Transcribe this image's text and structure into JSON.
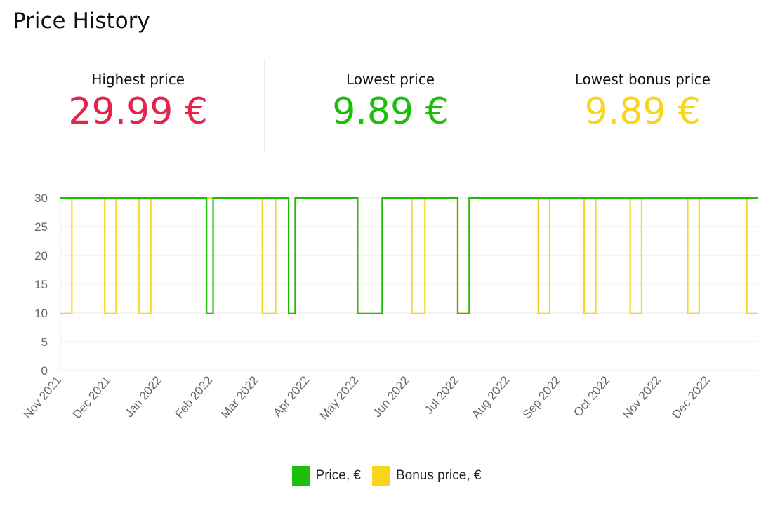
{
  "page": {
    "title": "Price History"
  },
  "stats": [
    {
      "label": "Highest price",
      "value": "29.99 €",
      "color": "#e3254b"
    },
    {
      "label": "Lowest price",
      "value": "9.89 €",
      "color": "#1dbd0c"
    },
    {
      "label": "Lowest bonus price",
      "value": "9.89 €",
      "color": "#f9d51c"
    }
  ],
  "chart_data": {
    "type": "line",
    "step": true,
    "x_type": "date",
    "xlim": [
      "2021-11-01",
      "2022-12-31"
    ],
    "ylim": [
      0,
      30
    ],
    "yticks": [
      0,
      5,
      10,
      15,
      20,
      25,
      30
    ],
    "xticks": [
      {
        "date": "2021-11-01",
        "label": "Nov 2021"
      },
      {
        "date": "2021-12-01",
        "label": "Dec 2021"
      },
      {
        "date": "2022-01-01",
        "label": "Jan 2022"
      },
      {
        "date": "2022-02-01",
        "label": "Feb 2022"
      },
      {
        "date": "2022-03-01",
        "label": "Mar 2022"
      },
      {
        "date": "2022-04-01",
        "label": "Apr 2022"
      },
      {
        "date": "2022-05-01",
        "label": "May 2022"
      },
      {
        "date": "2022-06-01",
        "label": "Jun 2022"
      },
      {
        "date": "2022-07-01",
        "label": "Jul 2022"
      },
      {
        "date": "2022-08-01",
        "label": "Aug 2022"
      },
      {
        "date": "2022-09-01",
        "label": "Sep 2022"
      },
      {
        "date": "2022-10-01",
        "label": "Oct 2022"
      },
      {
        "date": "2022-11-01",
        "label": "Nov 2022"
      },
      {
        "date": "2022-12-01",
        "label": "Dec 2022"
      }
    ],
    "grid": true,
    "legend_position": "bottom",
    "series": [
      {
        "name": "Price,  €",
        "color": "#1dbd0c",
        "points": [
          {
            "x": "2021-11-01",
            "y": 29.99
          },
          {
            "x": "2022-01-29",
            "y": 9.89
          },
          {
            "x": "2022-02-02",
            "y": 29.99
          },
          {
            "x": "2022-03-20",
            "y": 9.89
          },
          {
            "x": "2022-03-24",
            "y": 29.99
          },
          {
            "x": "2022-05-01",
            "y": 9.89
          },
          {
            "x": "2022-05-16",
            "y": 29.99
          },
          {
            "x": "2022-07-01",
            "y": 9.89
          },
          {
            "x": "2022-07-08",
            "y": 29.99
          },
          {
            "x": "2022-12-31",
            "y": 29.99
          }
        ]
      },
      {
        "name": "Bonus price,  €",
        "color": "#f9d51c",
        "points": [
          {
            "x": "2021-11-01",
            "y": 9.89
          },
          {
            "x": "2021-11-08",
            "y": 29.99
          },
          {
            "x": "2021-11-28",
            "y": 9.89
          },
          {
            "x": "2021-12-05",
            "y": 29.99
          },
          {
            "x": "2021-12-19",
            "y": 9.89
          },
          {
            "x": "2021-12-26",
            "y": 29.99
          },
          {
            "x": "2022-03-04",
            "y": 9.89
          },
          {
            "x": "2022-03-12",
            "y": 29.99
          },
          {
            "x": "2022-03-20",
            "y": 9.89
          },
          {
            "x": "2022-03-24",
            "y": 29.99
          },
          {
            "x": "2022-05-01",
            "y": 9.89
          },
          {
            "x": "2022-05-16",
            "y": 29.99
          },
          {
            "x": "2022-06-03",
            "y": 9.89
          },
          {
            "x": "2022-06-11",
            "y": 29.99
          },
          {
            "x": "2022-07-01",
            "y": 9.89
          },
          {
            "x": "2022-07-08",
            "y": 29.99
          },
          {
            "x": "2022-08-19",
            "y": 9.89
          },
          {
            "x": "2022-08-26",
            "y": 29.99
          },
          {
            "x": "2022-09-16",
            "y": 9.89
          },
          {
            "x": "2022-09-23",
            "y": 29.99
          },
          {
            "x": "2022-10-14",
            "y": 9.89
          },
          {
            "x": "2022-10-21",
            "y": 29.99
          },
          {
            "x": "2022-11-18",
            "y": 9.89
          },
          {
            "x": "2022-11-25",
            "y": 29.99
          },
          {
            "x": "2022-12-24",
            "y": 9.89
          },
          {
            "x": "2022-12-31",
            "y": 9.89
          }
        ]
      }
    ]
  }
}
